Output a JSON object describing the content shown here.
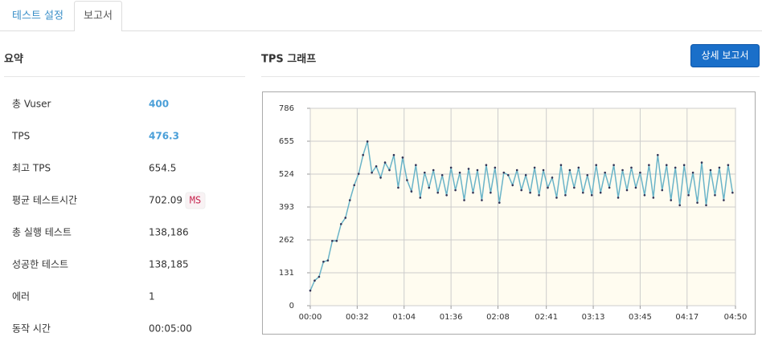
{
  "tabs": [
    "테스트 설정",
    "보고서"
  ],
  "summary": {
    "title": "요약",
    "rows": [
      {
        "label": "총 Vuser",
        "value": "400"
      },
      {
        "label": "TPS",
        "value": "476.3"
      },
      {
        "label": "최고 TPS",
        "value": "654.5"
      },
      {
        "label": "평균 테스트시간",
        "value": "702.09",
        "unit": "MS"
      },
      {
        "label": "총 실행 테스트",
        "value": "138,186"
      },
      {
        "label": "성공한 테스트",
        "value": "138,185"
      },
      {
        "label": "에러",
        "value": "1"
      },
      {
        "label": "동작 시간",
        "value": "00:05:00"
      }
    ]
  },
  "graph_title": "TPS 그래프",
  "button": "상세 보고서",
  "chart_data": {
    "type": "line",
    "color": "#6ab4c8",
    "grid": true,
    "xlim": [
      0,
      290
    ],
    "xticks": [
      {
        "value": 0,
        "label": "00:00"
      },
      {
        "value": 32,
        "label": "00:32"
      },
      {
        "value": 64,
        "label": "01:04"
      },
      {
        "value": 96,
        "label": "01:36"
      },
      {
        "value": 128,
        "label": "02:08"
      },
      {
        "value": 161,
        "label": "02:41"
      },
      {
        "value": 193,
        "label": "03:13"
      },
      {
        "value": 225,
        "label": "03:45"
      },
      {
        "value": 257,
        "label": "04:17"
      },
      {
        "value": 290,
        "label": "04:50"
      }
    ],
    "ylim": [
      0,
      786
    ],
    "yticks": [
      0,
      131,
      262,
      393,
      524,
      655,
      786
    ],
    "x": [
      0,
      3,
      6,
      9,
      12,
      15,
      18,
      21,
      24,
      27,
      30,
      33,
      36,
      39,
      42,
      45,
      48,
      51,
      54,
      57,
      60,
      63,
      66,
      69,
      72,
      75,
      78,
      81,
      84,
      87,
      90,
      93,
      96,
      99,
      102,
      105,
      108,
      111,
      114,
      117,
      120,
      123,
      126,
      129,
      132,
      135,
      138,
      141,
      144,
      147,
      150,
      153,
      156,
      159,
      162,
      165,
      168,
      171,
      174,
      177,
      180,
      183,
      186,
      189,
      192,
      195,
      198,
      201,
      204,
      207,
      210,
      213,
      216,
      219,
      222,
      225,
      228,
      231,
      234,
      237,
      240,
      243,
      246,
      249,
      252,
      255,
      258,
      261,
      264,
      267,
      270,
      273,
      276,
      279,
      282,
      285,
      288
    ],
    "values": [
      60,
      100,
      115,
      175,
      180,
      258,
      258,
      325,
      350,
      420,
      480,
      525,
      600,
      654,
      530,
      555,
      510,
      570,
      540,
      600,
      470,
      590,
      500,
      455,
      560,
      430,
      530,
      470,
      540,
      450,
      520,
      440,
      550,
      460,
      530,
      420,
      545,
      450,
      540,
      420,
      560,
      450,
      550,
      410,
      530,
      520,
      480,
      540,
      460,
      520,
      450,
      550,
      440,
      540,
      470,
      510,
      430,
      560,
      440,
      540,
      470,
      550,
      450,
      520,
      440,
      560,
      450,
      530,
      470,
      560,
      430,
      540,
      460,
      550,
      470,
      530,
      440,
      560,
      430,
      600,
      460,
      560,
      420,
      550,
      400,
      560,
      440,
      530,
      410,
      570,
      400,
      540,
      440,
      550,
      420,
      560,
      450
    ]
  }
}
